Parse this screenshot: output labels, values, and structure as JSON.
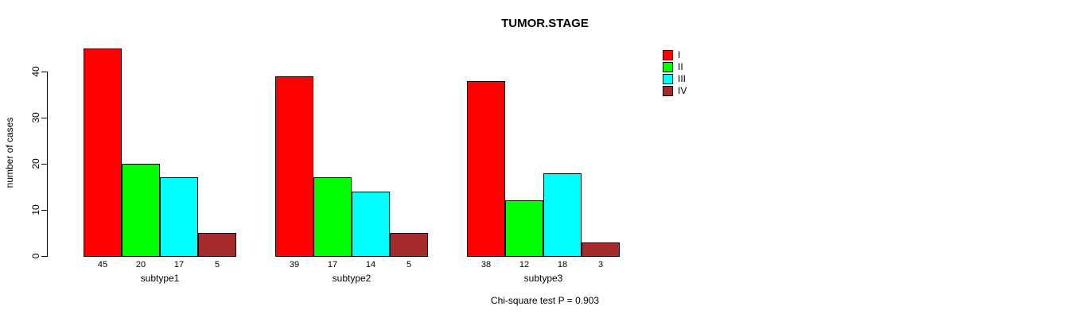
{
  "title": "TUMOR.STAGE",
  "ylabel": "number of cases",
  "footer": "Chi-square test P = 0.903",
  "legend": {
    "position": "top-right",
    "entries": [
      {
        "label": "I",
        "color": "#FF0000"
      },
      {
        "label": "II",
        "color": "#00FF00"
      },
      {
        "label": "III",
        "color": "#00FFFF"
      },
      {
        "label": "IV",
        "color": "#A52A2A"
      }
    ]
  },
  "chart_data": {
    "type": "bar",
    "title": "TUMOR.STAGE",
    "xlabel": "",
    "ylabel": "number of cases",
    "categories": [
      "subtype1",
      "subtype2",
      "subtype3"
    ],
    "series": [
      {
        "name": "I",
        "color": "#FF0000",
        "values": [
          45,
          39,
          38
        ]
      },
      {
        "name": "II",
        "color": "#00FF00",
        "values": [
          20,
          17,
          12
        ]
      },
      {
        "name": "III",
        "color": "#00FFFF",
        "values": [
          17,
          14,
          18
        ]
      },
      {
        "name": "IV",
        "color": "#A52A2A",
        "values": [
          5,
          5,
          3
        ]
      }
    ],
    "bar_value_labels_shown": true,
    "yticks": [
      0,
      10,
      20,
      30,
      40
    ],
    "ylim": [
      0,
      46
    ],
    "grid": false,
    "legend_position": "top-right",
    "annotation": "Chi-square test P = 0.903"
  }
}
